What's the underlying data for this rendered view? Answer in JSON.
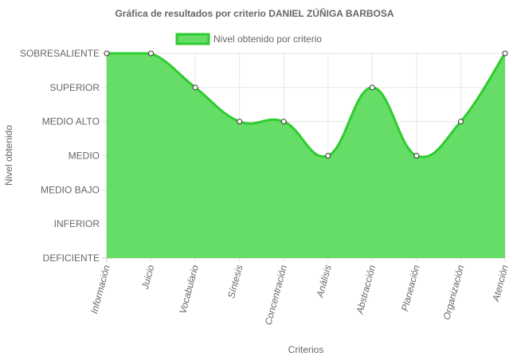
{
  "chart_data": {
    "type": "area",
    "title": "Gráfica de resultados por criterio DANIEL ZÚÑIGA BARBOSA",
    "xlabel": "Criterios",
    "ylabel": "Nivel obtenido",
    "levels": [
      "DEFICIENTE",
      "INFERIOR",
      "MEDIO BAJO",
      "MEDIO",
      "MEDIO ALTO",
      "SUPERIOR",
      "SOBRESALIENTE"
    ],
    "categories": [
      "Información",
      "Juicio",
      "Vocabulario",
      "Síntesis",
      "Concentración",
      "Análisis",
      "Abstracción",
      "Planeación",
      "Organización",
      "Atención"
    ],
    "series": [
      {
        "name": "Nivel obtenido por criterio",
        "values": [
          6,
          6,
          5,
          4,
          4,
          3,
          5,
          3,
          4,
          6
        ],
        "color": "#2ECC2E",
        "fill": "#66DD66"
      }
    ],
    "ylim": [
      0,
      6
    ],
    "grid": true,
    "legend_position": "top"
  }
}
